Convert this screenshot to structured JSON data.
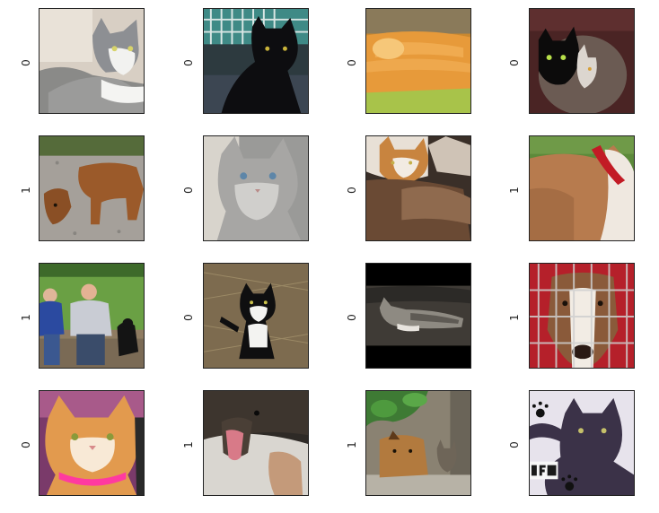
{
  "grid": {
    "rows": [
      [
        {
          "label": "0"
        },
        {
          "label": "0"
        },
        {
          "label": "0"
        },
        {
          "label": "0"
        }
      ],
      [
        {
          "label": "1"
        },
        {
          "label": "0"
        },
        {
          "label": "0"
        },
        {
          "label": "1"
        }
      ],
      [
        {
          "label": "1"
        },
        {
          "label": "0"
        },
        {
          "label": "0"
        },
        {
          "label": "1"
        }
      ],
      [
        {
          "label": "0"
        },
        {
          "label": "1"
        },
        {
          "label": "1"
        },
        {
          "label": "0"
        }
      ]
    ]
  }
}
